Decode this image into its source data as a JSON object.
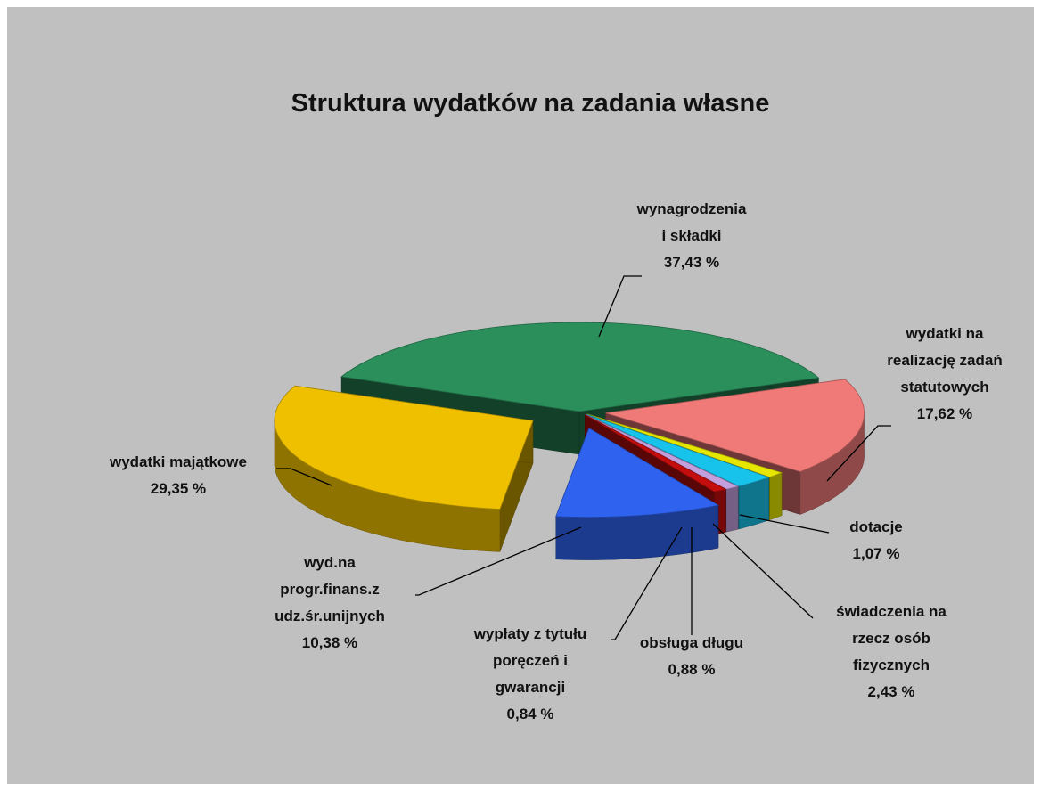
{
  "chart_data": {
    "type": "pie3d",
    "title": "Struktura wydatków na zadania własne",
    "categories": [
      [
        "wynagrodzenia",
        "i składki"
      ],
      [
        "wydatki na",
        "realizację zadań",
        "statutowych"
      ],
      [
        "dotacje"
      ],
      [
        "świadczenia na",
        "rzecz osób",
        "fizycznych"
      ],
      [
        "obsługa długu"
      ],
      [
        "wypłaty z tytułu",
        "poręczeń i",
        "gwarancji"
      ],
      [
        "wyd.na",
        "progr.finans.z",
        "udz.śr.unijnych"
      ],
      [
        "wydatki majątkowe"
      ]
    ],
    "values": [
      37.43,
      17.62,
      1.07,
      2.43,
      0.88,
      0.84,
      10.38,
      29.35
    ],
    "value_labels": [
      "37,43 %",
      "17,62 %",
      "1,07 %",
      "2,43 %",
      "0,88 %",
      "0,84 %",
      "10,38 %",
      "29,35 %"
    ],
    "colors": [
      "#2b8f5c",
      "#ef7a78",
      "#e6e600",
      "#17c3ea",
      "#c39fdd",
      "#c40d0d",
      "#2f62ee",
      "#eec000"
    ]
  }
}
